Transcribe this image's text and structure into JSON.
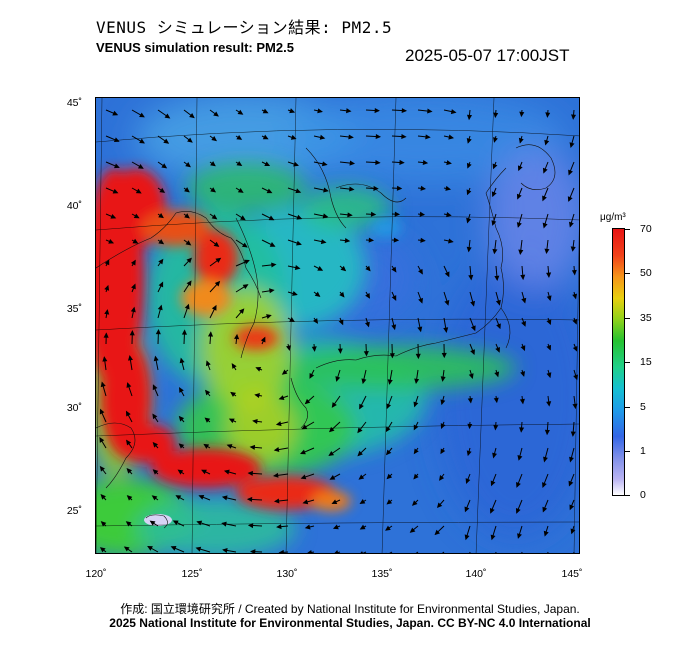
{
  "header": {
    "title_jp": "VENUS シミュレーション結果: PM2.5",
    "title_en": "VENUS simulation result: PM2.5",
    "timestamp": "2025-05-07 17:00JST"
  },
  "map": {
    "variable": "PM2.5",
    "lat_labels": [
      "45˚",
      "40˚",
      "35˚",
      "30˚",
      "25˚"
    ],
    "lon_labels": [
      "120˚",
      "125˚",
      "130˚",
      "135˚",
      "140˚",
      "145˚"
    ],
    "overlay": "wind-vectors",
    "base_color": "#2e72d8"
  },
  "colorbar": {
    "unit": "μg/m³",
    "labels": [
      "70",
      "50",
      "35",
      "15",
      "5",
      "1",
      "0"
    ],
    "colors": [
      "#e81414",
      "#f6951a",
      "#e9d00f",
      "#26c230",
      "#15c0d2",
      "#3466e6",
      "#ffffff"
    ]
  },
  "footer": {
    "credit_line_1": "作成: 国立環境研究所 / Created by National Institute for Environmental Studies, Japan.",
    "credit_line_2": "2025 National Institute for Environmental Studies, Japan. CC BY-NC 4.0 International"
  }
}
